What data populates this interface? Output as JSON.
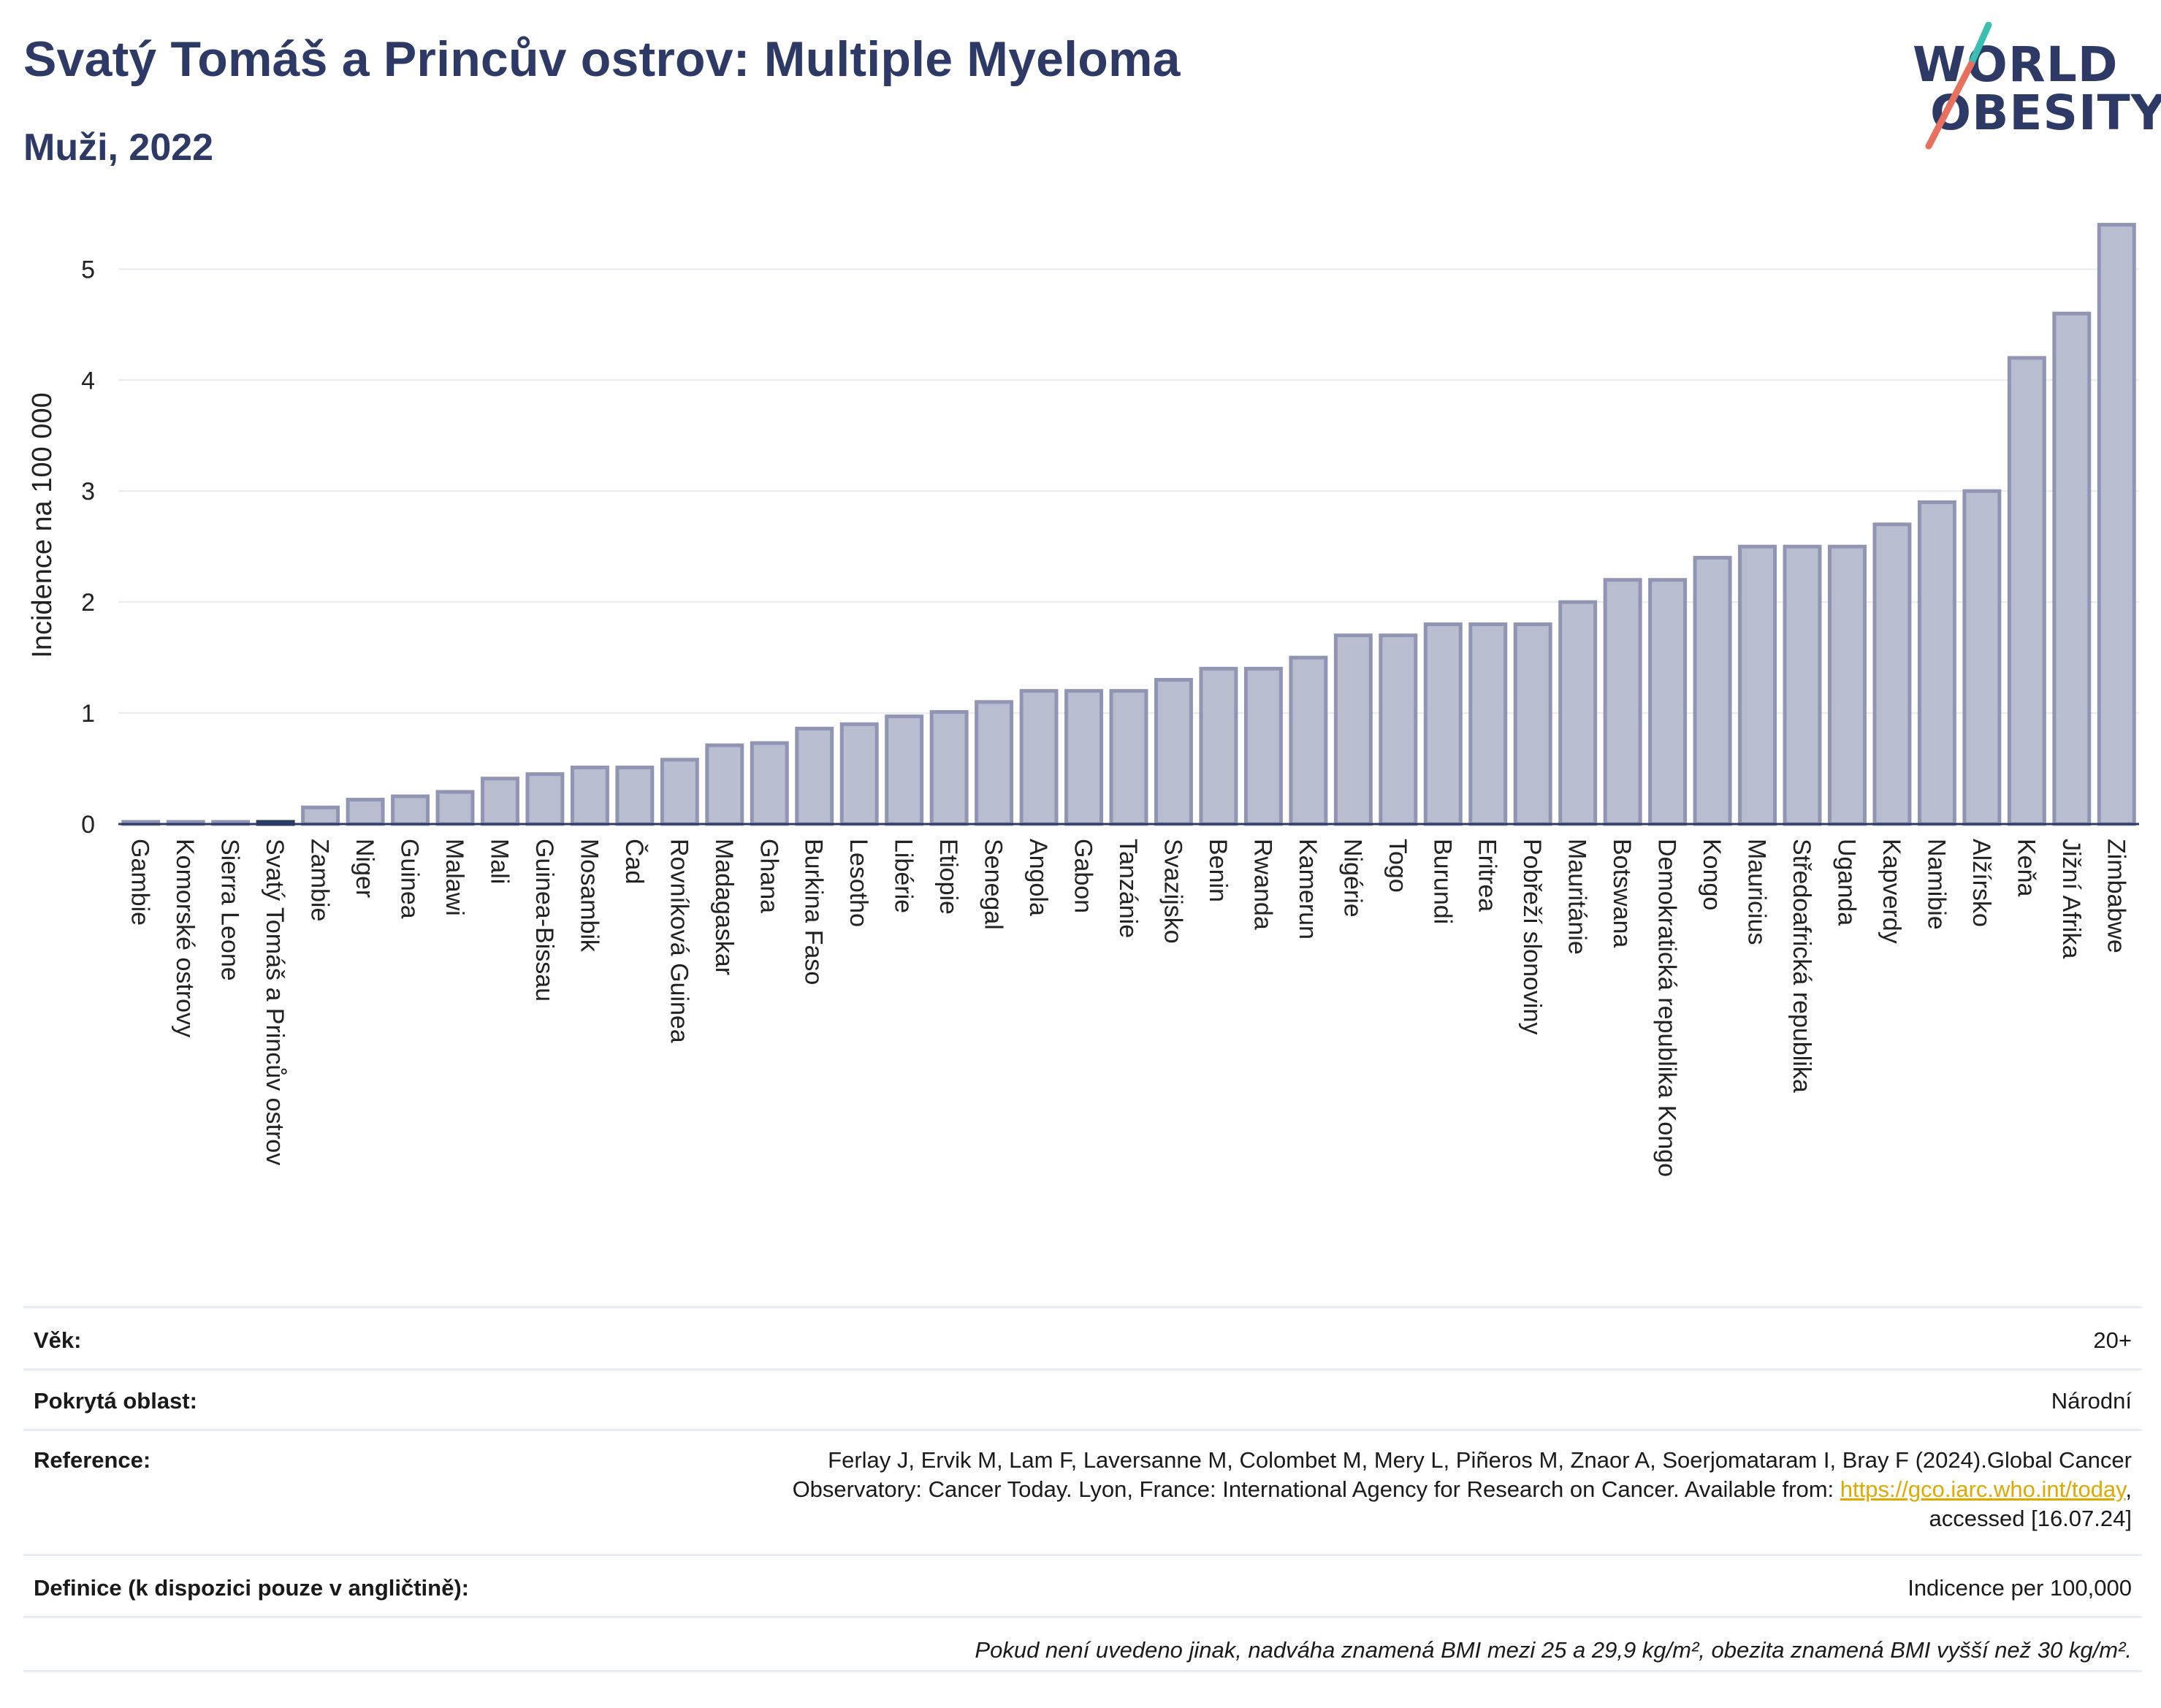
{
  "header": {
    "title": "Svatý Tomáš a Princův ostrov: Multiple Myeloma",
    "subtitle": "Muži, 2022",
    "logo_line1": "WORLD",
    "logo_line2": "OBESITY"
  },
  "colors": {
    "bar_fill": "#b9bdd0",
    "bar_stroke": "#8f95b3",
    "highlight": "#2d3a66",
    "title": "#2d3a66",
    "logo_teal": "#3bbfb3",
    "logo_coral": "#e8705e",
    "link": "#e0a800"
  },
  "chart_data": {
    "type": "bar",
    "ylabel": "Incidence na 100 000",
    "xlabel": "",
    "ylim": [
      0,
      5.45
    ],
    "yticks": [
      0,
      1,
      2,
      3,
      4,
      5
    ],
    "grid": true,
    "highlight_category": "Svatý Tomáš a Princův ostrov",
    "categories": [
      "Gambie",
      "Komorské ostrovy",
      "Sierra Leone",
      "Svatý Tomáš a Princův ostrov",
      "Zambie",
      "Niger",
      "Guinea",
      "Malawi",
      "Mali",
      "Guinea-Bissau",
      "Mosambik",
      "Čad",
      "Rovníková Guinea",
      "Madagaskar",
      "Ghana",
      "Burkina Faso",
      "Lesotho",
      "Libérie",
      "Etiopie",
      "Senegal",
      "Angola",
      "Gabon",
      "Tanzánie",
      "Svazijsko",
      "Benin",
      "Rwanda",
      "Kamerun",
      "Nigérie",
      "Togo",
      "Burundi",
      "Eritrea",
      "Pobřeží slonoviny",
      "Mauritánie",
      "Botswana",
      "Demokratická republika Kongo",
      "Kongo",
      "Mauricius",
      "Středoafrická republika",
      "Uganda",
      "Kapverdy",
      "Namibie",
      "Alžírsko",
      "Keňa",
      "Jižní Afrika",
      "Zimbabwe"
    ],
    "values": [
      0.02,
      0.02,
      0.02,
      0.02,
      0.15,
      0.22,
      0.25,
      0.29,
      0.41,
      0.45,
      0.51,
      0.51,
      0.58,
      0.71,
      0.73,
      0.86,
      0.9,
      0.97,
      1.01,
      1.1,
      1.2,
      1.2,
      1.2,
      1.3,
      1.4,
      1.4,
      1.5,
      1.7,
      1.7,
      1.8,
      1.8,
      1.8,
      2.0,
      2.2,
      2.2,
      2.4,
      2.5,
      2.5,
      2.5,
      2.7,
      2.9,
      3.0,
      4.2,
      4.6,
      5.4
    ]
  },
  "info": {
    "age_label": "Věk:",
    "age_value": "20+",
    "area_label": "Pokrytá oblast:",
    "area_value": "Národní",
    "ref_label": "Reference:",
    "ref_line1": "Ferlay J, Ervik M, Lam F, Laversanne M, Colombet M, Mery L, Piñeros M, Znaor A, Soerjomataram I, Bray F (2024).Global Cancer",
    "ref_line2_pre": "Observatory: Cancer Today. Lyon, France: International Agency for Research on Cancer. Available from: ",
    "ref_link": "https://gco.iarc.who.int/today",
    "ref_line2_post": ",",
    "ref_line3": "accessed [16.07.24]",
    "def_label": "Definice (k dispozici pouze v angličtině):",
    "def_value": "Indicence per 100,000",
    "note": "Pokud není uvedeno jinak, nadváha znamená BMI mezi 25 a 29,9 kg/m², obezita znamená BMI vyšší než 30 kg/m²."
  }
}
